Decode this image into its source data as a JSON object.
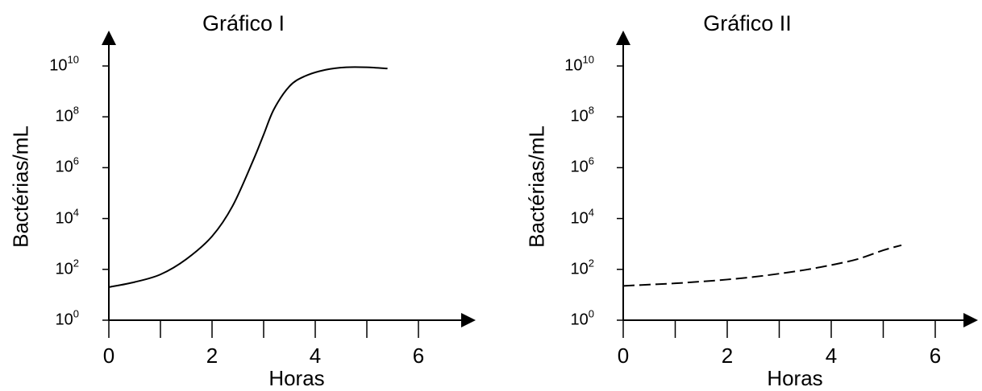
{
  "chart_data": [
    {
      "type": "line",
      "title": "Gráfico I",
      "xlabel": "Horas",
      "ylabel": "Bactérias/mL",
      "xlim": [
        0,
        7
      ],
      "ylim_log10": [
        0,
        11
      ],
      "y_scale": "log",
      "y_ticks": [
        {
          "base": "10",
          "exp": "0"
        },
        {
          "base": "10",
          "exp": "2"
        },
        {
          "base": "10",
          "exp": "4"
        },
        {
          "base": "10",
          "exp": "6"
        },
        {
          "base": "10",
          "exp": "8"
        },
        {
          "base": "10",
          "exp": "10"
        }
      ],
      "x_ticks": [
        "0",
        "2",
        "4",
        "6"
      ],
      "x_minor_ticks": [
        1,
        3,
        5
      ],
      "line_style": "solid",
      "series": [
        {
          "x": [
            0,
            0.5,
            1.0,
            1.5,
            2.0,
            2.4,
            2.8,
            3.0,
            3.2,
            3.5,
            3.8,
            4.2,
            4.6,
            5.0,
            5.4
          ],
          "y_log10": [
            1.3,
            1.5,
            1.8,
            2.4,
            3.3,
            4.5,
            6.3,
            7.3,
            8.3,
            9.2,
            9.6,
            9.85,
            9.95,
            9.95,
            9.9
          ]
        }
      ]
    },
    {
      "type": "line",
      "title": "Gráfico II",
      "xlabel": "Horas",
      "ylabel": "Bactérias/mL",
      "xlim": [
        0,
        7
      ],
      "ylim_log10": [
        0,
        11
      ],
      "y_scale": "log",
      "y_ticks": [
        {
          "base": "10",
          "exp": "0"
        },
        {
          "base": "10",
          "exp": "2"
        },
        {
          "base": "10",
          "exp": "4"
        },
        {
          "base": "10",
          "exp": "6"
        },
        {
          "base": "10",
          "exp": "8"
        },
        {
          "base": "10",
          "exp": "10"
        }
      ],
      "x_ticks": [
        "0",
        "2",
        "4",
        "6"
      ],
      "x_minor_ticks": [
        1,
        3,
        5
      ],
      "line_style": "dashed",
      "series": [
        {
          "x": [
            0,
            0.5,
            1.0,
            1.5,
            2.0,
            2.5,
            3.0,
            3.5,
            4.0,
            4.5,
            5.0,
            5.35
          ],
          "y_log10": [
            1.35,
            1.4,
            1.45,
            1.52,
            1.6,
            1.7,
            1.83,
            1.98,
            2.17,
            2.4,
            2.75,
            2.95
          ]
        }
      ]
    }
  ]
}
